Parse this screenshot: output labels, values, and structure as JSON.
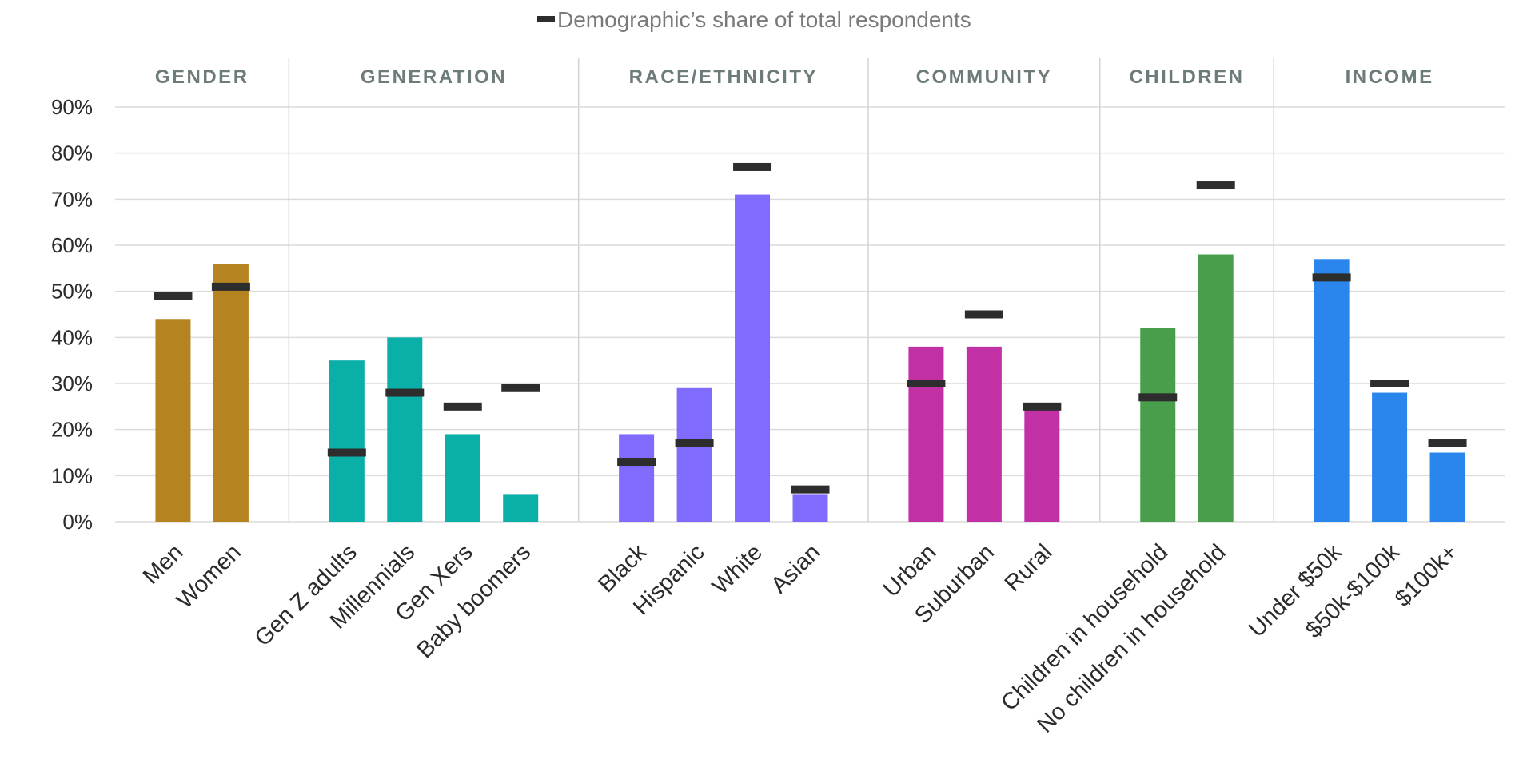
{
  "chart_data": {
    "type": "bar",
    "legend": {
      "marker_label": "Demographic’s share of total respondents",
      "placement": "top-center"
    },
    "y_axis": {
      "min": 0,
      "max": 90,
      "ticks": [
        "0%",
        "10%",
        "20%",
        "30%",
        "40%",
        "50%",
        "60%",
        "70%",
        "80%",
        "90%"
      ]
    },
    "grid": true,
    "groups": [
      {
        "title": "GENDER",
        "color": "#B5831F",
        "categories": [
          "Men",
          "Women"
        ],
        "values": [
          44,
          56
        ],
        "share": [
          49,
          51
        ]
      },
      {
        "title": "GENERATION",
        "color": "#0AAFA8",
        "categories": [
          "Gen Z adults",
          "Millennials",
          "Gen Xers",
          "Baby boomers"
        ],
        "values": [
          35,
          40,
          19,
          6
        ],
        "share": [
          15,
          28,
          25,
          29
        ]
      },
      {
        "title": "RACE/ETHNICITY",
        "color": "#806BFF",
        "categories": [
          "Black",
          "Hispanic",
          "White",
          "Asian"
        ],
        "values": [
          19,
          29,
          71,
          6
        ],
        "share": [
          13,
          17,
          77,
          7
        ]
      },
      {
        "title": "COMMUNITY",
        "color": "#C230A6",
        "categories": [
          "Urban",
          "Suburban",
          "Rural"
        ],
        "values": [
          38,
          38,
          25
        ],
        "share": [
          30,
          45,
          25
        ]
      },
      {
        "title": "CHILDREN",
        "color": "#489E4A",
        "categories": [
          "Children in household",
          "No children in household"
        ],
        "values": [
          42,
          58
        ],
        "share": [
          27,
          73
        ]
      },
      {
        "title": "INCOME",
        "color": "#2A85EC",
        "categories": [
          "Under $50k",
          "$50k-$100k",
          "$100k+"
        ],
        "values": [
          57,
          28,
          15
        ],
        "share": [
          53,
          30,
          17
        ]
      }
    ]
  }
}
